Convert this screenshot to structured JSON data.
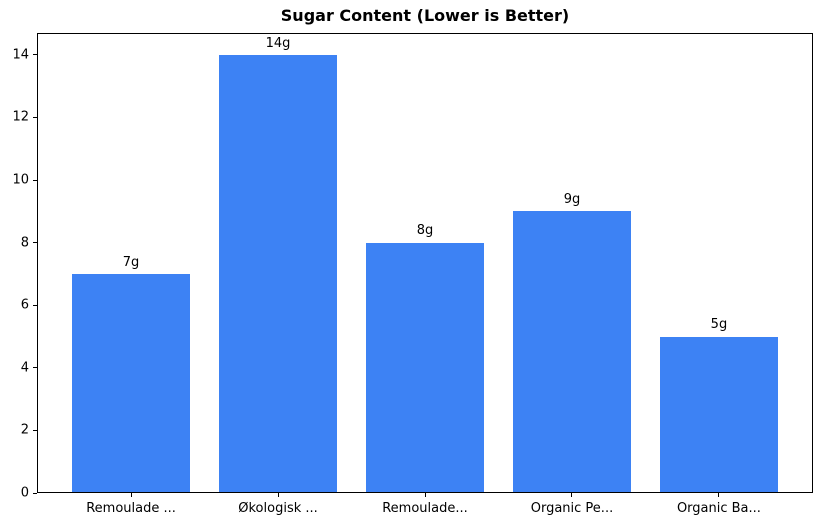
{
  "chart_data": {
    "type": "bar",
    "title": "Sugar Content (Lower is Better)",
    "categories": [
      "Remoulade ...",
      "Økologisk ...",
      "Remoulade...",
      "Organic Pe...",
      "Organic Ba..."
    ],
    "values": [
      7,
      14,
      8,
      9,
      5
    ],
    "bar_labels": [
      "7g",
      "14g",
      "8g",
      "9g",
      "5g"
    ],
    "bar_color": "#3D82F4",
    "axis_color": "#000000",
    "text_color": "#000000",
    "background_color": "#FFFFFF",
    "xlabel": "",
    "ylabel": "",
    "yticks": [
      0,
      2,
      4,
      6,
      8,
      10,
      12,
      14
    ],
    "ylim": [
      0,
      14.7
    ],
    "xlim": [
      -0.64,
      4.64
    ],
    "bar_width_units": 0.8,
    "grid": false,
    "legend": "none"
  }
}
